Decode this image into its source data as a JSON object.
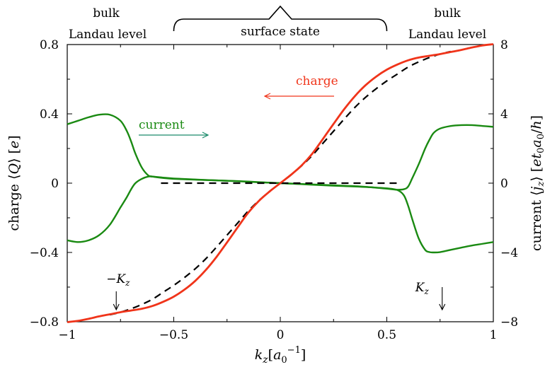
{
  "chart_data": {
    "type": "line",
    "xlabel": "k_z[a_0^{-1}]",
    "ylabel_left": "charge ⟨Q⟩ [e]",
    "ylabel_right": "current ⟨j_z⟩ [et_0a_0/h]",
    "xlim": [
      -1,
      1
    ],
    "ylim_left": [
      -0.8,
      0.8
    ],
    "ylim_right": [
      -8,
      8
    ],
    "x_ticks": [
      -1,
      -0.5,
      0,
      0.5,
      1
    ],
    "x_tick_labels": [
      "−1",
      "−0.5",
      "0",
      "0.5",
      "1"
    ],
    "y_left_ticks": [
      -0.8,
      -0.4,
      0,
      0.4,
      0.8
    ],
    "y_left_tick_labels": [
      "−0.8",
      "−0.4",
      "0",
      "0.4",
      "0.8"
    ],
    "y_right_ticks": [
      -8,
      -4,
      0,
      4,
      8
    ],
    "y_right_tick_labels": [
      "−8",
      "−4",
      "0",
      "4",
      "8"
    ],
    "grid": false,
    "colors": {
      "charge": "#f0341a",
      "current": "#1a8a12",
      "dashed": "#000000",
      "current_arrow": "#1a8a6a"
    },
    "series": [
      {
        "axis": "left",
        "style": "solid",
        "color_key": "charge",
        "x": [
          -1,
          -0.95,
          -0.9,
          -0.85,
          -0.8,
          -0.75,
          -0.7,
          -0.65,
          -0.6,
          -0.55,
          -0.5,
          -0.45,
          -0.4,
          -0.35,
          -0.3,
          -0.25,
          -0.2,
          -0.15,
          -0.1,
          -0.05,
          0,
          0.05,
          0.1,
          0.15,
          0.2,
          0.25,
          0.3,
          0.35,
          0.4,
          0.45,
          0.5,
          0.55,
          0.6,
          0.65,
          0.7,
          0.75,
          0.8,
          0.85,
          0.9,
          0.95,
          1
        ],
        "y": [
          -0.802,
          -0.795,
          -0.783,
          -0.769,
          -0.757,
          -0.745,
          -0.735,
          -0.725,
          -0.709,
          -0.685,
          -0.655,
          -0.615,
          -0.565,
          -0.502,
          -0.427,
          -0.342,
          -0.255,
          -0.17,
          -0.102,
          -0.048,
          0,
          0.048,
          0.102,
          0.17,
          0.255,
          0.342,
          0.427,
          0.502,
          0.565,
          0.615,
          0.655,
          0.685,
          0.709,
          0.725,
          0.735,
          0.745,
          0.757,
          0.769,
          0.783,
          0.795,
          0.802
        ]
      },
      {
        "axis": "left",
        "style": "dashed",
        "color_key": "dashed",
        "x": [
          -0.8,
          -0.75,
          -0.7,
          -0.65,
          -0.6,
          -0.55,
          -0.5,
          -0.45,
          -0.4,
          -0.35,
          -0.3,
          -0.25,
          -0.2,
          -0.15,
          -0.1,
          -0.05,
          0,
          0.05,
          0.1,
          0.15,
          0.2,
          0.25,
          0.3,
          0.35,
          0.4,
          0.45,
          0.5,
          0.55,
          0.6,
          0.65,
          0.7,
          0.75,
          0.8
        ],
        "y": [
          -0.76,
          -0.745,
          -0.725,
          -0.7,
          -0.67,
          -0.63,
          -0.59,
          -0.545,
          -0.495,
          -0.437,
          -0.37,
          -0.3,
          -0.23,
          -0.16,
          -0.1,
          -0.047,
          0,
          0.047,
          0.1,
          0.16,
          0.23,
          0.3,
          0.37,
          0.437,
          0.495,
          0.545,
          0.59,
          0.63,
          0.67,
          0.7,
          0.725,
          0.745,
          0.76
        ]
      },
      {
        "axis": "left",
        "style": "dashed",
        "color_key": "dashed",
        "x": [
          -0.56,
          0.56
        ],
        "y": [
          0.0,
          0.0
        ]
      },
      {
        "axis": "right",
        "style": "solid",
        "color_key": "current",
        "x": [
          -1,
          -0.95,
          -0.9,
          -0.85,
          -0.8,
          -0.75,
          -0.72,
          -0.7,
          -0.68,
          -0.65,
          -0.62,
          -0.6,
          -0.55,
          -0.5,
          -0.4,
          -0.3,
          -0.2,
          -0.1,
          0,
          0.1,
          0.2,
          0.3,
          0.4,
          0.5,
          0.55,
          0.58,
          0.6,
          0.62,
          0.65,
          0.68,
          0.7,
          0.72,
          0.75,
          0.8,
          0.85,
          0.9,
          0.95,
          1
        ],
        "y": [
          3.4,
          3.6,
          3.8,
          3.95,
          3.95,
          3.6,
          3.0,
          2.4,
          1.7,
          0.9,
          0.45,
          0.38,
          0.3,
          0.25,
          0.2,
          0.16,
          0.12,
          0.06,
          0,
          -0.06,
          -0.12,
          -0.17,
          -0.22,
          -0.3,
          -0.4,
          -0.7,
          -1.3,
          -2.1,
          -3.2,
          -3.85,
          -3.98,
          -4.0,
          -3.98,
          -3.85,
          -3.72,
          -3.6,
          -3.5,
          -3.4
        ]
      },
      {
        "axis": "right",
        "style": "solid",
        "color_key": "current",
        "x": [
          -1,
          -0.95,
          -0.9,
          -0.85,
          -0.8,
          -0.75,
          -0.72,
          -0.7,
          -0.68,
          -0.65,
          -0.62,
          -0.6,
          -0.55,
          -0.5,
          -0.4,
          -0.3,
          -0.2,
          -0.1,
          0,
          0.1,
          0.2,
          0.3,
          0.4,
          0.5,
          0.55,
          0.58,
          0.6,
          0.62,
          0.65,
          0.68,
          0.7,
          0.72,
          0.75,
          0.8,
          0.85,
          0.9,
          0.95,
          1
        ],
        "y": [
          -3.3,
          -3.4,
          -3.3,
          -3.0,
          -2.4,
          -1.4,
          -0.8,
          -0.35,
          0.0,
          0.25,
          0.38,
          0.38,
          0.32,
          0.27,
          0.21,
          0.16,
          0.11,
          0.05,
          0,
          -0.05,
          -0.1,
          -0.15,
          -0.21,
          -0.32,
          -0.38,
          -0.35,
          -0.2,
          0.3,
          1.1,
          2.0,
          2.5,
          2.9,
          3.15,
          3.3,
          3.35,
          3.35,
          3.3,
          3.25
        ]
      }
    ],
    "annotations": {
      "bulk_left": [
        "bulk",
        "Landau level"
      ],
      "bulk_right": [
        "bulk",
        "Landau level"
      ],
      "surface_state": "surface state",
      "charge_label": "charge",
      "current_label": "current",
      "neg_kz": "−K",
      "pos_kz": "K",
      "kz_sub": "z",
      "neg_kz_x": -0.77,
      "pos_kz_x": 0.76,
      "brace_range": [
        -0.5,
        0.5
      ]
    }
  }
}
